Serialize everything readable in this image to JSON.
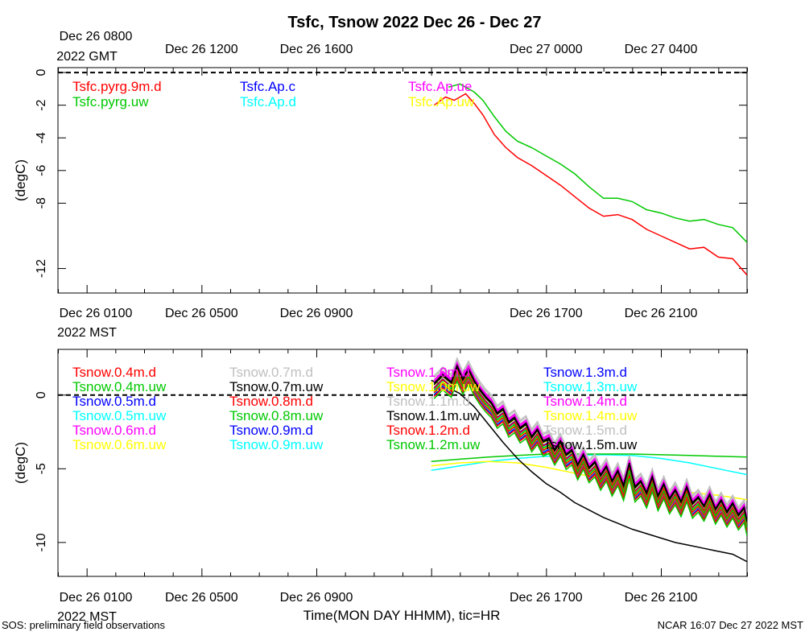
{
  "page": {
    "title": "Tsfc, Tsnow 2022 Dec 26 - Dec 27",
    "footer_left": "SOS: preliminary field observations",
    "footer_right": "NCAR 16:07 Dec 27 2022 MST",
    "xlabel": "Time(MON DAY HHMM), tic=HR",
    "gmt_axis": {
      "first_label": [
        "Dec 26 0800",
        "2022 GMT"
      ],
      "labels": [
        "Dec 26 1200",
        "Dec 26 1600",
        "Dec 27 0000",
        "Dec 27 0400"
      ]
    },
    "mst_axis": {
      "first_label": [
        "Dec 26 0100",
        "2022 MST"
      ],
      "labels": [
        "Dec 26 0500",
        "Dec 26 0900",
        "Dec 26 1700",
        "Dec 26 2100"
      ]
    }
  },
  "colors": {
    "red": "#ff0000",
    "green": "#00c800",
    "blue": "#0000ff",
    "cyan": "#00ffff",
    "magenta": "#ff00ff",
    "yellow": "#ffff00",
    "gray": "#c0c0c0",
    "black": "#000000"
  },
  "chart_data": [
    {
      "type": "line",
      "id": "tsfc",
      "ylabel": "(degC)",
      "xlim_hours_mst": [
        0,
        24
      ],
      "ylim": [
        -13.5,
        0.3
      ],
      "yticks": [
        0,
        -2,
        -4,
        -6,
        -8,
        -12
      ],
      "ytick_labels": [
        "0",
        "-2",
        "-4",
        "-6",
        "-8",
        "-12"
      ],
      "reference_line": 0,
      "legend": [
        {
          "name": "Tsfc.pyrg.9m.d",
          "color": "#ff0000"
        },
        {
          "name": "Tsfc.pyrg.uw",
          "color": "#00c800"
        },
        {
          "name": "Tsfc.Ap.c",
          "color": "#0000ff"
        },
        {
          "name": "Tsfc.Ap.d",
          "color": "#00ffff"
        },
        {
          "name": "Tsfc.Ap.ue",
          "color": "#ff00ff"
        },
        {
          "name": "Tsfc.Ap.uw",
          "color": "#ffff00"
        }
      ],
      "series": [
        {
          "name": "Tsfc.pyrg.9m.d",
          "color": "#ff0000",
          "points": [
            [
              13.1,
              -2.0
            ],
            [
              13.5,
              -1.5
            ],
            [
              13.8,
              -1.7
            ],
            [
              14.2,
              -1.3
            ],
            [
              14.5,
              -1.9
            ],
            [
              14.8,
              -2.6
            ],
            [
              15.2,
              -3.8
            ],
            [
              15.6,
              -4.6
            ],
            [
              16.0,
              -5.2
            ],
            [
              16.5,
              -5.7
            ],
            [
              17.0,
              -6.3
            ],
            [
              17.5,
              -6.9
            ],
            [
              18.0,
              -7.6
            ],
            [
              18.5,
              -8.3
            ],
            [
              19.0,
              -8.8
            ],
            [
              19.5,
              -8.7
            ],
            [
              20.0,
              -9.0
            ],
            [
              20.5,
              -9.6
            ],
            [
              21.0,
              -10.0
            ],
            [
              21.5,
              -10.4
            ],
            [
              22.0,
              -10.8
            ],
            [
              22.5,
              -10.7
            ],
            [
              23.0,
              -11.3
            ],
            [
              23.5,
              -11.4
            ],
            [
              24.0,
              -12.4
            ]
          ]
        },
        {
          "name": "Tsfc.pyrg.uw",
          "color": "#00c800",
          "points": [
            [
              13.6,
              -0.9
            ],
            [
              14.0,
              -0.7
            ],
            [
              14.5,
              -1.2
            ],
            [
              14.8,
              -1.7
            ],
            [
              15.2,
              -2.7
            ],
            [
              15.6,
              -3.6
            ],
            [
              16.0,
              -4.2
            ],
            [
              16.5,
              -4.6
            ],
            [
              17.0,
              -5.1
            ],
            [
              17.5,
              -5.6
            ],
            [
              18.0,
              -6.2
            ],
            [
              18.5,
              -7.0
            ],
            [
              19.0,
              -7.7
            ],
            [
              19.5,
              -7.7
            ],
            [
              20.0,
              -7.9
            ],
            [
              20.5,
              -8.4
            ],
            [
              21.0,
              -8.6
            ],
            [
              21.5,
              -8.9
            ],
            [
              22.0,
              -9.1
            ],
            [
              22.5,
              -9.0
            ],
            [
              23.0,
              -9.3
            ],
            [
              23.5,
              -9.5
            ],
            [
              24.0,
              -10.4
            ]
          ]
        }
      ]
    },
    {
      "type": "line",
      "id": "tsnow",
      "ylabel": "(degC)",
      "xlim_hours_mst": [
        0,
        24
      ],
      "ylim": [
        -12.3,
        3.1
      ],
      "yticks": [
        0,
        -5,
        -10
      ],
      "ytick_labels": [
        "0",
        "-5",
        "-10"
      ],
      "reference_line": 0,
      "legend": [
        {
          "name": "Tsnow.0.4m.d",
          "color": "#ff0000"
        },
        {
          "name": "Tsnow.0.4m.uw",
          "color": "#00c800"
        },
        {
          "name": "Tsnow.0.5m.d",
          "color": "#0000ff"
        },
        {
          "name": "Tsnow.0.5m.uw",
          "color": "#00ffff"
        },
        {
          "name": "Tsnow.0.6m.d",
          "color": "#ff00ff"
        },
        {
          "name": "Tsnow.0.6m.uw",
          "color": "#ffff00"
        },
        {
          "name": "Tsnow.0.7m.d",
          "color": "#c0c0c0"
        },
        {
          "name": "Tsnow.0.7m.uw",
          "color": "#000000"
        },
        {
          "name": "Tsnow.0.8m.d",
          "color": "#ff0000"
        },
        {
          "name": "Tsnow.0.8m.uw",
          "color": "#00c800"
        },
        {
          "name": "Tsnow.0.9m.d",
          "color": "#0000ff"
        },
        {
          "name": "Tsnow.0.9m.uw",
          "color": "#00ffff"
        },
        {
          "name": "Tsnow.1.0m.d",
          "color": "#ff00ff"
        },
        {
          "name": "Tsnow.1.0m.uw",
          "color": "#ffff00"
        },
        {
          "name": "Tsnow.1.1m.d",
          "color": "#c0c0c0"
        },
        {
          "name": "Tsnow.1.1m.uw",
          "color": "#000000"
        },
        {
          "name": "Tsnow.1.2m.d",
          "color": "#ff0000"
        },
        {
          "name": "Tsnow.1.2m.uw",
          "color": "#00c800"
        },
        {
          "name": "Tsnow.1.3m.d",
          "color": "#0000ff"
        },
        {
          "name": "Tsnow.1.3m.uw",
          "color": "#00ffff"
        },
        {
          "name": "Tsnow.1.4m.d",
          "color": "#ff00ff"
        },
        {
          "name": "Tsnow.1.4m.uw",
          "color": "#ffff00"
        },
        {
          "name": "Tsnow.1.5m.d",
          "color": "#c0c0c0"
        },
        {
          "name": "Tsnow.1.5m.uw",
          "color": "#000000"
        }
      ],
      "series": [
        {
          "name": "Tsnow.1.3m.uw",
          "color": "#00ffff",
          "kind": "smooth",
          "points": [
            [
              13.0,
              -5.1
            ],
            [
              14.0,
              -4.8
            ],
            [
              15.0,
              -4.5
            ],
            [
              16.0,
              -4.3
            ],
            [
              17.0,
              -4.15
            ],
            [
              18.0,
              -4.1
            ],
            [
              19.0,
              -4.05
            ],
            [
              20.0,
              -4.1
            ],
            [
              21.0,
              -4.3
            ],
            [
              22.0,
              -4.6
            ],
            [
              23.0,
              -5.0
            ],
            [
              24.0,
              -5.4
            ]
          ]
        },
        {
          "name": "Tsnow.1.2m.uw",
          "color": "#00c800",
          "kind": "smooth",
          "points": [
            [
              13.0,
              -4.5
            ],
            [
              14.0,
              -4.35
            ],
            [
              15.0,
              -4.2
            ],
            [
              16.0,
              -4.1
            ],
            [
              17.0,
              -4.0
            ],
            [
              18.0,
              -4.0
            ],
            [
              19.0,
              -4.0
            ],
            [
              20.0,
              -4.0
            ],
            [
              21.0,
              -4.05
            ],
            [
              22.0,
              -4.1
            ],
            [
              23.0,
              -4.15
            ],
            [
              24.0,
              -4.2
            ]
          ]
        },
        {
          "name": "Tsnow.1.4m.uw",
          "color": "#ffff00",
          "kind": "smooth",
          "points": [
            [
              13.0,
              -4.8
            ],
            [
              14.0,
              -4.6
            ],
            [
              15.0,
              -4.5
            ],
            [
              16.0,
              -4.6
            ],
            [
              17.0,
              -4.9
            ],
            [
              18.0,
              -5.3
            ],
            [
              19.0,
              -5.7
            ],
            [
              20.0,
              -6.0
            ],
            [
              21.0,
              -6.3
            ],
            [
              22.0,
              -6.6
            ],
            [
              23.0,
              -6.8
            ],
            [
              24.0,
              -7.1
            ]
          ]
        },
        {
          "name": "Tsnow.1.5m.uw",
          "color": "#000000",
          "kind": "smooth",
          "points": [
            [
              13.0,
              1.0
            ],
            [
              13.5,
              0.6
            ],
            [
              14.0,
              0.1
            ],
            [
              14.5,
              -0.8
            ],
            [
              15.0,
              -2.0
            ],
            [
              15.5,
              -3.2
            ],
            [
              16.0,
              -4.3
            ],
            [
              16.5,
              -5.2
            ],
            [
              17.0,
              -6.0
            ],
            [
              17.5,
              -6.6
            ],
            [
              18.0,
              -7.3
            ],
            [
              18.5,
              -7.8
            ],
            [
              19.0,
              -8.3
            ],
            [
              19.5,
              -8.7
            ],
            [
              20.0,
              -9.1
            ],
            [
              20.5,
              -9.4
            ],
            [
              21.0,
              -9.7
            ],
            [
              21.5,
              -10.0
            ],
            [
              22.0,
              -10.2
            ],
            [
              22.5,
              -10.4
            ],
            [
              23.0,
              -10.6
            ],
            [
              23.5,
              -10.8
            ],
            [
              24.0,
              -11.3
            ]
          ]
        },
        {
          "name": "Tsnow.1.5m.d",
          "color": "#c0c0c0",
          "kind": "noisy",
          "offset": 0.6
        },
        {
          "name": "Tsnow.1.1m.d",
          "color": "#c0c0c0",
          "kind": "noisy",
          "offset": 0.35
        },
        {
          "name": "Tsnow.0.7m.d",
          "color": "#c0c0c0",
          "kind": "noisy",
          "offset": 0.5
        },
        {
          "name": "Tsnow.1.4m.d",
          "color": "#ff00ff",
          "kind": "noisy",
          "offset": 0.3
        },
        {
          "name": "Tsnow.1.0m.d",
          "color": "#ff00ff",
          "kind": "noisy",
          "offset": 0.2
        },
        {
          "name": "Tsnow.0.6m.d",
          "color": "#ff00ff",
          "kind": "noisy",
          "offset": -0.3
        },
        {
          "name": "Tsnow.1.3m.d",
          "color": "#0000ff",
          "kind": "noisy",
          "offset": -0.2
        },
        {
          "name": "Tsnow.0.9m.d",
          "color": "#0000ff",
          "kind": "noisy",
          "offset": -0.5
        },
        {
          "name": "Tsnow.0.5m.d",
          "color": "#0000ff",
          "kind": "noisy",
          "offset": -0.7
        },
        {
          "name": "Tsnow.0.5m.uw",
          "color": "#00ffff",
          "kind": "noisy",
          "offset": -0.6
        },
        {
          "name": "Tsnow.0.9m.uw",
          "color": "#00ffff",
          "kind": "noisy",
          "offset": -0.35
        },
        {
          "name": "Tsnow.1.0m.uw",
          "color": "#ffff00",
          "kind": "noisy",
          "offset": -0.05
        },
        {
          "name": "Tsnow.0.6m.uw",
          "color": "#ffff00",
          "kind": "noisy",
          "offset": -0.45
        },
        {
          "name": "Tsnow.1.2m.d",
          "color": "#ff0000",
          "kind": "noisy",
          "offset": -0.25
        },
        {
          "name": "Tsnow.0.8m.d",
          "color": "#ff0000",
          "kind": "noisy",
          "offset": -0.55
        },
        {
          "name": "Tsnow.0.4m.d",
          "color": "#ff0000",
          "kind": "noisy",
          "offset": -0.8
        },
        {
          "name": "Tsnow.0.8m.uw",
          "color": "#00c800",
          "kind": "noisy",
          "offset": -0.4
        },
        {
          "name": "Tsnow.0.4m.uw",
          "color": "#00c800",
          "kind": "noisy",
          "offset": -0.95
        },
        {
          "name": "Tsnow.1.1m.uw",
          "color": "#000000",
          "kind": "noisy",
          "offset": 0.1
        },
        {
          "name": "Tsnow.0.7m.uw",
          "color": "#000000",
          "kind": "noisy",
          "offset": 0.0
        }
      ],
      "noisy_base": {
        "description": "shared trajectory of the 0.4-1.5 m snow temperature traces",
        "points": [
          [
            13.1,
            0.7
          ],
          [
            13.4,
            1.3
          ],
          [
            13.7,
            0.8
          ],
          [
            13.9,
            1.9
          ],
          [
            14.1,
            1.0
          ],
          [
            14.3,
            1.7
          ],
          [
            14.5,
            0.9
          ],
          [
            14.7,
            0.3
          ],
          [
            14.9,
            -0.2
          ],
          [
            15.1,
            -0.6
          ],
          [
            15.3,
            -1.3
          ],
          [
            15.5,
            -1.0
          ],
          [
            15.7,
            -1.9
          ],
          [
            15.9,
            -1.6
          ],
          [
            16.1,
            -2.3
          ],
          [
            16.3,
            -2.0
          ],
          [
            16.5,
            -2.9
          ],
          [
            16.7,
            -2.4
          ],
          [
            16.9,
            -3.2
          ],
          [
            17.1,
            -3.0
          ],
          [
            17.3,
            -3.8
          ],
          [
            17.5,
            -3.2
          ],
          [
            17.7,
            -4.1
          ],
          [
            17.9,
            -3.8
          ],
          [
            18.1,
            -4.8
          ],
          [
            18.3,
            -4.1
          ],
          [
            18.5,
            -5.0
          ],
          [
            18.7,
            -4.6
          ],
          [
            18.9,
            -5.5
          ],
          [
            19.1,
            -4.9
          ],
          [
            19.3,
            -5.9
          ],
          [
            19.5,
            -5.2
          ],
          [
            19.7,
            -6.2
          ],
          [
            19.9,
            -4.7
          ],
          [
            20.1,
            -6.3
          ],
          [
            20.3,
            -5.9
          ],
          [
            20.5,
            -6.7
          ],
          [
            20.7,
            -5.6
          ],
          [
            20.9,
            -6.9
          ],
          [
            21.1,
            -6.1
          ],
          [
            21.3,
            -7.1
          ],
          [
            21.5,
            -6.5
          ],
          [
            21.7,
            -7.3
          ],
          [
            21.9,
            -6.3
          ],
          [
            22.1,
            -7.4
          ],
          [
            22.3,
            -7.0
          ],
          [
            22.5,
            -7.6
          ],
          [
            22.7,
            -6.8
          ],
          [
            22.9,
            -7.8
          ],
          [
            23.1,
            -7.2
          ],
          [
            23.3,
            -8.0
          ],
          [
            23.5,
            -7.4
          ],
          [
            23.7,
            -8.2
          ],
          [
            23.9,
            -7.7
          ],
          [
            24.0,
            -8.6
          ]
        ]
      }
    }
  ]
}
